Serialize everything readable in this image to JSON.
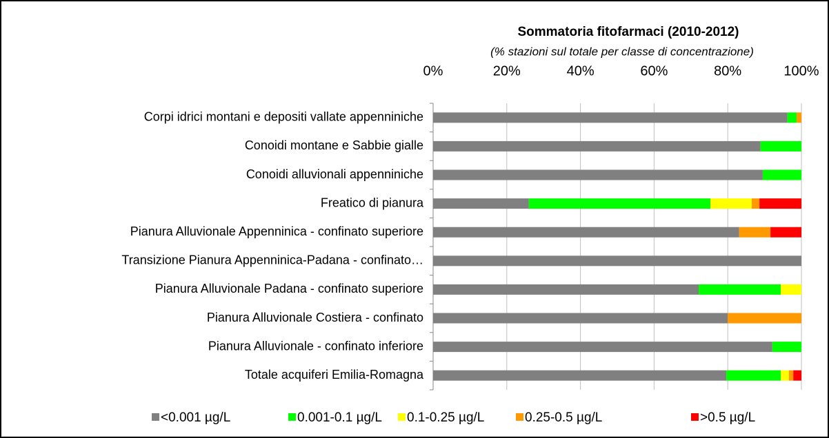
{
  "chart_data": {
    "type": "stacked-bar-horizontal",
    "title": "Sommatoria fitofarmaci (2010-2012)",
    "subtitle": "(% stazioni sul totale per classe di concentrazione)",
    "categories": [
      "Corpi idrici montani e depositi vallate appenniniche",
      "Conoidi montane e Sabbie gialle",
      "Conoidi alluvionali appenniniche",
      "Freatico di pianura",
      "Pianura Alluvionale Appenninica - confinato superiore",
      "Transizione Pianura Appenninica-Padana - confinato…",
      "Pianura Alluvionale Padana - confinato superiore",
      "Pianura Alluvionale Costiera - confinato",
      "Pianura Alluvionale - confinato inferiore",
      "Totale acquiferi Emilia-Romagna"
    ],
    "series": [
      {
        "name": "<0.001 µg/L",
        "color": "#808080",
        "values": [
          96.2,
          88.9,
          89.5,
          26.0,
          83.1,
          100,
          72.1,
          80.0,
          92.1,
          79.6
        ]
      },
      {
        "name": "0.001-0.1 µg/L",
        "color": "#00ff00",
        "values": [
          2.5,
          11.1,
          10.5,
          49.3,
          0,
          0,
          22.3,
          0,
          7.9,
          14.8
        ]
      },
      {
        "name": "0.1-0.25 µg/L",
        "color": "#ffff00",
        "values": [
          0,
          0,
          0,
          11.2,
          0,
          0,
          5.6,
          0,
          0,
          2.2
        ]
      },
      {
        "name": "0.25-0.5 µg/L",
        "color": "#ff9900",
        "values": [
          1.3,
          0,
          0,
          2.1,
          8.5,
          0,
          0,
          20.0,
          0,
          1.2
        ]
      },
      {
        "name": ">0.5 µg/L",
        "color": "#ff0000",
        "values": [
          0,
          0,
          0,
          11.4,
          8.4,
          0,
          0,
          0,
          0,
          2.2
        ]
      }
    ],
    "xlim": [
      0,
      100
    ],
    "xticks": [
      {
        "value": 0,
        "label": "0%"
      },
      {
        "value": 20,
        "label": "20%"
      },
      {
        "value": 40,
        "label": "40%"
      },
      {
        "value": 60,
        "label": "60%"
      },
      {
        "value": 80,
        "label": "80%"
      },
      {
        "value": 100,
        "label": "100%"
      }
    ],
    "grid": true,
    "legend": "bottom"
  }
}
